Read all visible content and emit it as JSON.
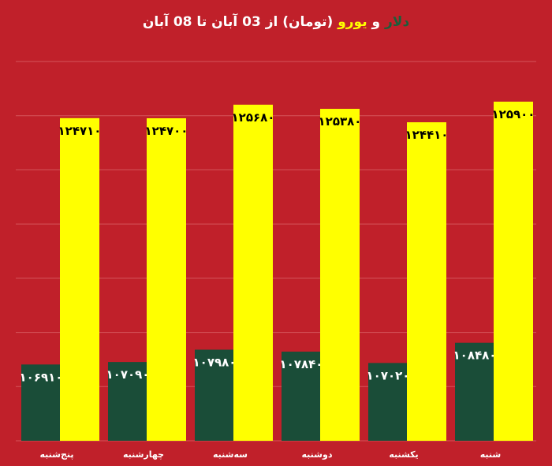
{
  "title": {
    "dollar_word": "دلار",
    "and_word": " و ",
    "euro_word": "یورو",
    "rest": " (تومان) از 03 آبان تا 08 آبان"
  },
  "colors": {
    "background": "#c0202a",
    "dollar": "#1a4d38",
    "euro": "#ffff00",
    "grid": "#d4545a",
    "text": "#ffffff",
    "label_dark": "#000000"
  },
  "chart_data": {
    "type": "bar",
    "categories": [
      "پنج‌شنبه",
      "چهارشنبه",
      "سه‌شنبه",
      "دوشنبه",
      "یکشنبه",
      "شنبه"
    ],
    "series": [
      {
        "name": "دلار",
        "values": [
          106910,
          107090,
          107980,
          107840,
          107020,
          108480
        ],
        "labels": [
          "۱۰۶۹۱۰",
          "۱۰۷۰۹۰",
          "۱۰۷۹۸۰",
          "۱۰۷۸۴۰",
          "۱۰۷۰۲۰",
          "۱۰۸۴۸۰"
        ]
      },
      {
        "name": "یورو",
        "values": [
          124710,
          124700,
          125680,
          125380,
          124410,
          125900
        ],
        "labels": [
          "۱۲۴۷۱۰",
          "۱۲۴۷۰۰",
          "۱۲۵۶۸۰",
          "۱۲۵۳۸۰",
          "۱۲۴۴۱۰",
          "۱۲۵۹۰۰"
        ]
      }
    ],
    "ylim": [
      101400,
      128800
    ],
    "grid": true,
    "legend": "none"
  }
}
